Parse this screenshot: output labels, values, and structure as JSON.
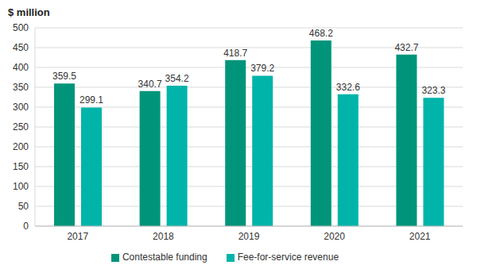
{
  "chart_data": {
    "type": "bar",
    "ylabel": "$ million",
    "categories": [
      "2017",
      "2018",
      "2019",
      "2020",
      "2021"
    ],
    "series": [
      {
        "name": "Contestable funding",
        "color": "#00957a",
        "values": [
          359.5,
          340.7,
          418.7,
          468.2,
          432.7
        ]
      },
      {
        "name": "Fee-for-service revenue",
        "color": "#00b4aa",
        "values": [
          299.1,
          354.2,
          379.2,
          332.6,
          323.3
        ]
      }
    ],
    "ylim": [
      0,
      500
    ],
    "yticks": [
      0,
      50,
      100,
      150,
      200,
      250,
      300,
      350,
      400,
      450,
      500
    ],
    "grid": true,
    "data_labels": true,
    "legend": "bottom"
  }
}
